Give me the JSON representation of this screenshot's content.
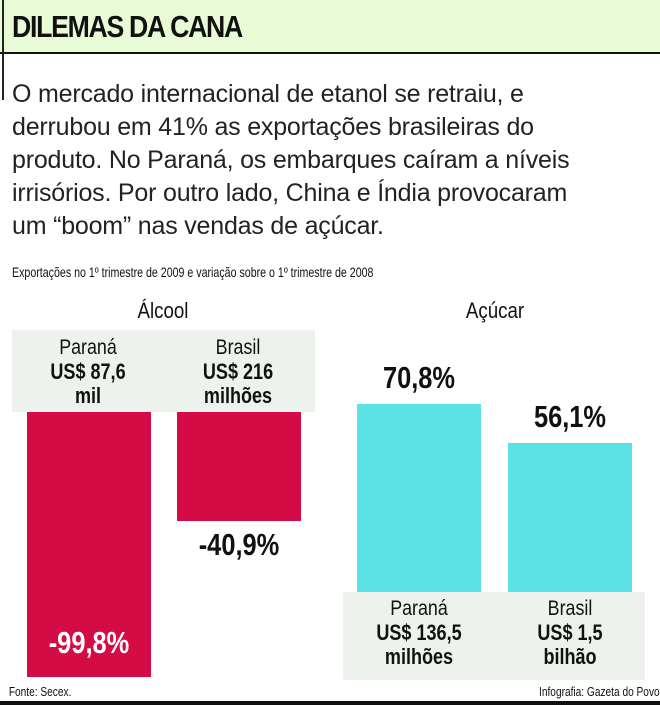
{
  "header": {
    "title": "DILEMAS DA CANA"
  },
  "intro": {
    "lines": [
      "O mercado internacional de etanol se retraiu, e",
      "derrubou em 41% as exportações brasileiras do",
      "produto. No Paraná, os embarques caíram a níveis",
      "irrisórios. Por outro lado, China e Índia provocaram",
      "um “boom” nas vendas de açúcar."
    ]
  },
  "chart_data": {
    "type": "bar",
    "subtitle": "Exportações no 1º trimestre de 2009 e variação sobre o 1º trimestre de 2008",
    "groups": [
      {
        "name": "Álcool",
        "color": "#d50b45",
        "bars": [
          {
            "region": "Paraná",
            "amount": "US$ 87,6",
            "unit": "mil",
            "value": -99.8,
            "label": "-99,8%"
          },
          {
            "region": "Brasil",
            "amount": "US$ 216",
            "unit": "milhões",
            "value": -40.9,
            "label": "-40,9%"
          }
        ]
      },
      {
        "name": "Açúcar",
        "color": "#5be2e6",
        "bars": [
          {
            "region": "Paraná",
            "amount": "US$ 136,5",
            "unit": "milhões",
            "value": 70.8,
            "label": "70,8%"
          },
          {
            "region": "Brasil",
            "amount": "US$ 1,5",
            "unit": "bilhão",
            "value": 56.1,
            "label": "56,1%"
          }
        ]
      }
    ]
  },
  "footer": {
    "source": "Fonte: Secex.",
    "credit": "Infografia: Gazeta do Povo"
  }
}
